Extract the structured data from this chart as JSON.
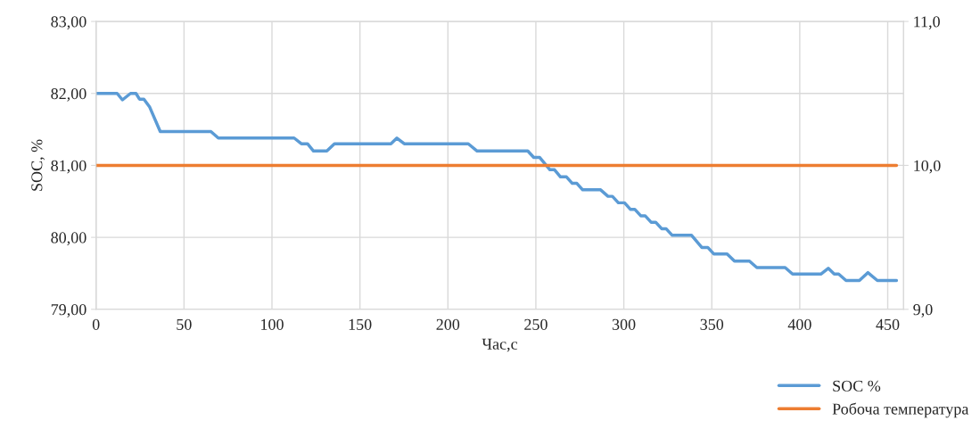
{
  "chart_data": {
    "type": "line",
    "xlabel": "Час,с",
    "ylabel": "SOC, %",
    "xlim": [
      0,
      459
    ],
    "xticks": [
      0,
      50,
      100,
      150,
      200,
      250,
      300,
      350,
      400,
      450
    ],
    "ylim": [
      79,
      83
    ],
    "yticks": [
      {
        "value": 79,
        "label": "79,00"
      },
      {
        "value": 80,
        "label": "80,00"
      },
      {
        "value": 81,
        "label": "81,00"
      },
      {
        "value": 82,
        "label": "82,00"
      },
      {
        "value": 83,
        "label": "83,00"
      }
    ],
    "y2lim": [
      9,
      11
    ],
    "y2ticks": [
      {
        "value": 9,
        "label": "9,0"
      },
      {
        "value": 10,
        "label": "10,0"
      },
      {
        "value": 11,
        "label": "11,0"
      }
    ],
    "grid": true,
    "legend": "bottom right",
    "marker": "none",
    "line_style": "solid",
    "series": [
      {
        "name": "SOC %",
        "color": "#5b9bd5",
        "x": [
          0,
          12,
          15,
          19.6,
          22.7,
          24.7,
          27.2,
          30.5,
          36.5,
          39,
          65.3,
          69.5,
          112.6,
          116.7,
          120.2,
          123.6,
          131.2,
          135.5,
          167.6,
          171,
          175.2,
          211.6,
          216.6,
          245.4,
          248.8,
          252.2,
          258,
          260.6,
          264,
          267.4,
          270.7,
          273.3,
          276.6,
          286.8,
          291,
          293.5,
          296.9,
          300.4,
          303.7,
          306.2,
          309.6,
          312.1,
          315.5,
          318.1,
          321.5,
          324,
          327.4,
          338.4,
          344.3,
          347.7,
          351.1,
          358.7,
          362.9,
          371.4,
          375.6,
          391.7,
          395.9,
          412,
          416.2,
          419.6,
          422.1,
          426.3,
          433.9,
          438.7,
          444.1,
          455
        ],
        "values": [
          82.0,
          82.0,
          81.91,
          82.0,
          82.0,
          81.92,
          81.92,
          81.81,
          81.47,
          81.47,
          81.47,
          81.38,
          81.38,
          81.3,
          81.3,
          81.2,
          81.2,
          81.3,
          81.3,
          81.38,
          81.3,
          81.3,
          81.2,
          81.2,
          81.11,
          81.11,
          80.94,
          80.94,
          80.84,
          80.84,
          80.75,
          80.75,
          80.66,
          80.66,
          80.57,
          80.57,
          80.48,
          80.48,
          80.39,
          80.39,
          80.3,
          80.3,
          80.21,
          80.21,
          80.12,
          80.12,
          80.03,
          80.03,
          79.86,
          79.86,
          79.77,
          79.77,
          79.67,
          79.67,
          79.58,
          79.58,
          79.49,
          79.49,
          79.57,
          79.49,
          79.49,
          79.4,
          79.4,
          79.51,
          79.4,
          79.4
        ]
      },
      {
        "name": "Робоча температура",
        "color": "#ed7d31",
        "axis": "y2",
        "x": [
          0,
          455
        ],
        "values": [
          10,
          10
        ]
      }
    ]
  }
}
